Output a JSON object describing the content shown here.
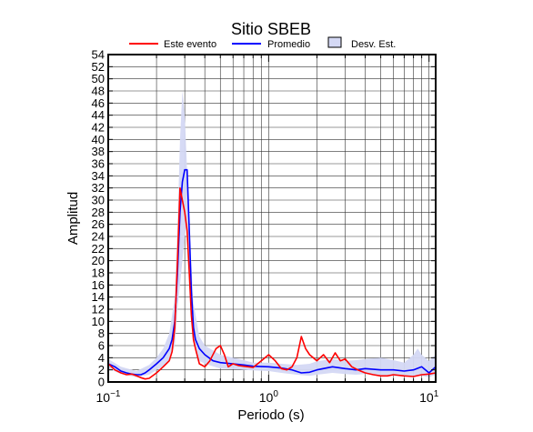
{
  "chart_data": {
    "type": "line",
    "title": "Sitio SBEB",
    "xlabel": "Periodo (s)",
    "ylabel": "Amplitud",
    "x_scale": "log",
    "xlim": [
      0.1,
      11
    ],
    "ylim": [
      0,
      54
    ],
    "grid": true,
    "legend_position": "top",
    "x_tick_labels": [
      {
        "value": 0.1,
        "base": "10",
        "exp": "−1"
      },
      {
        "value": 1,
        "base": "10",
        "exp": "0"
      },
      {
        "value": 10,
        "base": "10",
        "exp": "1"
      }
    ],
    "y_ticks": [
      0,
      2,
      4,
      6,
      8,
      10,
      12,
      14,
      16,
      18,
      20,
      22,
      24,
      26,
      28,
      30,
      32,
      34,
      36,
      38,
      40,
      42,
      44,
      46,
      48,
      50,
      52,
      54
    ],
    "legend": [
      {
        "label": "Este evento",
        "kind": "line",
        "color": "#ff0000"
      },
      {
        "label": "Promedio",
        "kind": "line",
        "color": "#0000ff"
      },
      {
        "label": "Desv. Est.",
        "kind": "band",
        "color": "#d4d8f4"
      }
    ],
    "series": [
      {
        "name": "Este evento",
        "color": "#ff0000",
        "x": [
          0.1,
          0.11,
          0.12,
          0.13,
          0.14,
          0.15,
          0.16,
          0.17,
          0.18,
          0.2,
          0.22,
          0.24,
          0.25,
          0.26,
          0.27,
          0.28,
          0.29,
          0.3,
          0.31,
          0.32,
          0.33,
          0.34,
          0.35,
          0.37,
          0.4,
          0.43,
          0.47,
          0.5,
          0.53,
          0.56,
          0.6,
          0.65,
          0.7,
          0.8,
          0.9,
          1.0,
          1.1,
          1.2,
          1.3,
          1.4,
          1.5,
          1.6,
          1.7,
          1.8,
          2.0,
          2.2,
          2.4,
          2.6,
          2.8,
          3.0,
          3.3,
          3.6,
          4.0,
          4.5,
          5.0,
          5.5,
          6.0,
          7.0,
          8.0,
          9.0,
          10.0,
          11.0
        ],
        "values": [
          3.0,
          2.0,
          1.5,
          1.2,
          1.3,
          1.0,
          0.7,
          0.5,
          0.6,
          1.5,
          2.5,
          3.5,
          5.0,
          9.0,
          20.0,
          32.0,
          30.0,
          28.0,
          25.0,
          18.0,
          11.0,
          7.0,
          5.5,
          3.0,
          2.5,
          3.5,
          5.5,
          6.0,
          4.5,
          2.5,
          3.0,
          2.7,
          2.6,
          2.4,
          3.5,
          4.5,
          3.5,
          2.2,
          2.0,
          2.5,
          4.0,
          7.5,
          5.5,
          4.5,
          3.5,
          4.5,
          3.2,
          4.8,
          3.5,
          3.8,
          2.5,
          2.0,
          1.5,
          1.2,
          1.0,
          1.0,
          1.2,
          1.0,
          0.9,
          1.2,
          1.3,
          1.5
        ]
      },
      {
        "name": "Promedio",
        "color": "#0000ff",
        "x": [
          0.1,
          0.11,
          0.12,
          0.13,
          0.14,
          0.15,
          0.16,
          0.17,
          0.18,
          0.2,
          0.22,
          0.24,
          0.25,
          0.26,
          0.27,
          0.28,
          0.29,
          0.3,
          0.31,
          0.32,
          0.33,
          0.34,
          0.35,
          0.37,
          0.4,
          0.45,
          0.5,
          0.6,
          0.7,
          0.8,
          1.0,
          1.2,
          1.4,
          1.6,
          1.8,
          2.0,
          2.5,
          3.0,
          3.5,
          4.0,
          5.0,
          6.0,
          7.0,
          8.0,
          9.0,
          10.0,
          11.0
        ],
        "values": [
          3.0,
          2.5,
          1.8,
          1.5,
          1.3,
          1.2,
          1.2,
          1.5,
          2.0,
          3.0,
          4.0,
          5.5,
          7.0,
          10.0,
          18.0,
          28.0,
          33.0,
          35.0,
          35.0,
          25.0,
          15.0,
          9.0,
          7.0,
          5.5,
          4.5,
          3.5,
          3.2,
          3.0,
          2.8,
          2.6,
          2.5,
          2.3,
          2.0,
          1.5,
          1.6,
          2.0,
          2.5,
          2.2,
          2.0,
          2.2,
          2.0,
          2.0,
          1.8,
          2.0,
          2.5,
          1.5,
          2.5
        ]
      }
    ],
    "std_band": {
      "name": "Desv. Est.",
      "color": "#d4d8f4",
      "x": [
        0.1,
        0.12,
        0.15,
        0.18,
        0.2,
        0.22,
        0.24,
        0.26,
        0.27,
        0.28,
        0.29,
        0.3,
        0.31,
        0.32,
        0.34,
        0.37,
        0.4,
        0.5,
        0.6,
        0.7,
        0.8,
        1.0,
        1.2,
        1.5,
        1.8,
        2.0,
        2.5,
        3.0,
        3.5,
        4.0,
        4.5,
        5.0,
        6.0,
        7.0,
        8.0,
        8.5,
        9.0,
        10.0,
        11.0
      ],
      "upper": [
        3.8,
        2.5,
        1.8,
        2.8,
        4.0,
        5.5,
        8.0,
        14.0,
        25.0,
        40.0,
        48.0,
        44.0,
        35.0,
        26.0,
        13.0,
        7.5,
        6.0,
        4.5,
        4.0,
        3.6,
        3.2,
        3.2,
        3.0,
        2.8,
        3.0,
        3.4,
        3.8,
        3.5,
        3.6,
        3.8,
        3.9,
        4.0,
        3.6,
        3.2,
        4.5,
        5.5,
        4.5,
        3.5,
        4.5
      ],
      "lower": [
        2.2,
        1.3,
        0.8,
        1.2,
        2.0,
        2.6,
        3.5,
        6.0,
        12.0,
        16.0,
        20.0,
        24.0,
        26.0,
        18.0,
        7.0,
        3.5,
        3.0,
        2.2,
        2.1,
        2.0,
        1.9,
        1.8,
        1.5,
        1.2,
        1.0,
        1.2,
        1.5,
        1.3,
        1.2,
        1.3,
        1.2,
        1.1,
        1.0,
        0.9,
        1.0,
        1.1,
        1.0,
        0.8,
        1.2
      ]
    }
  }
}
